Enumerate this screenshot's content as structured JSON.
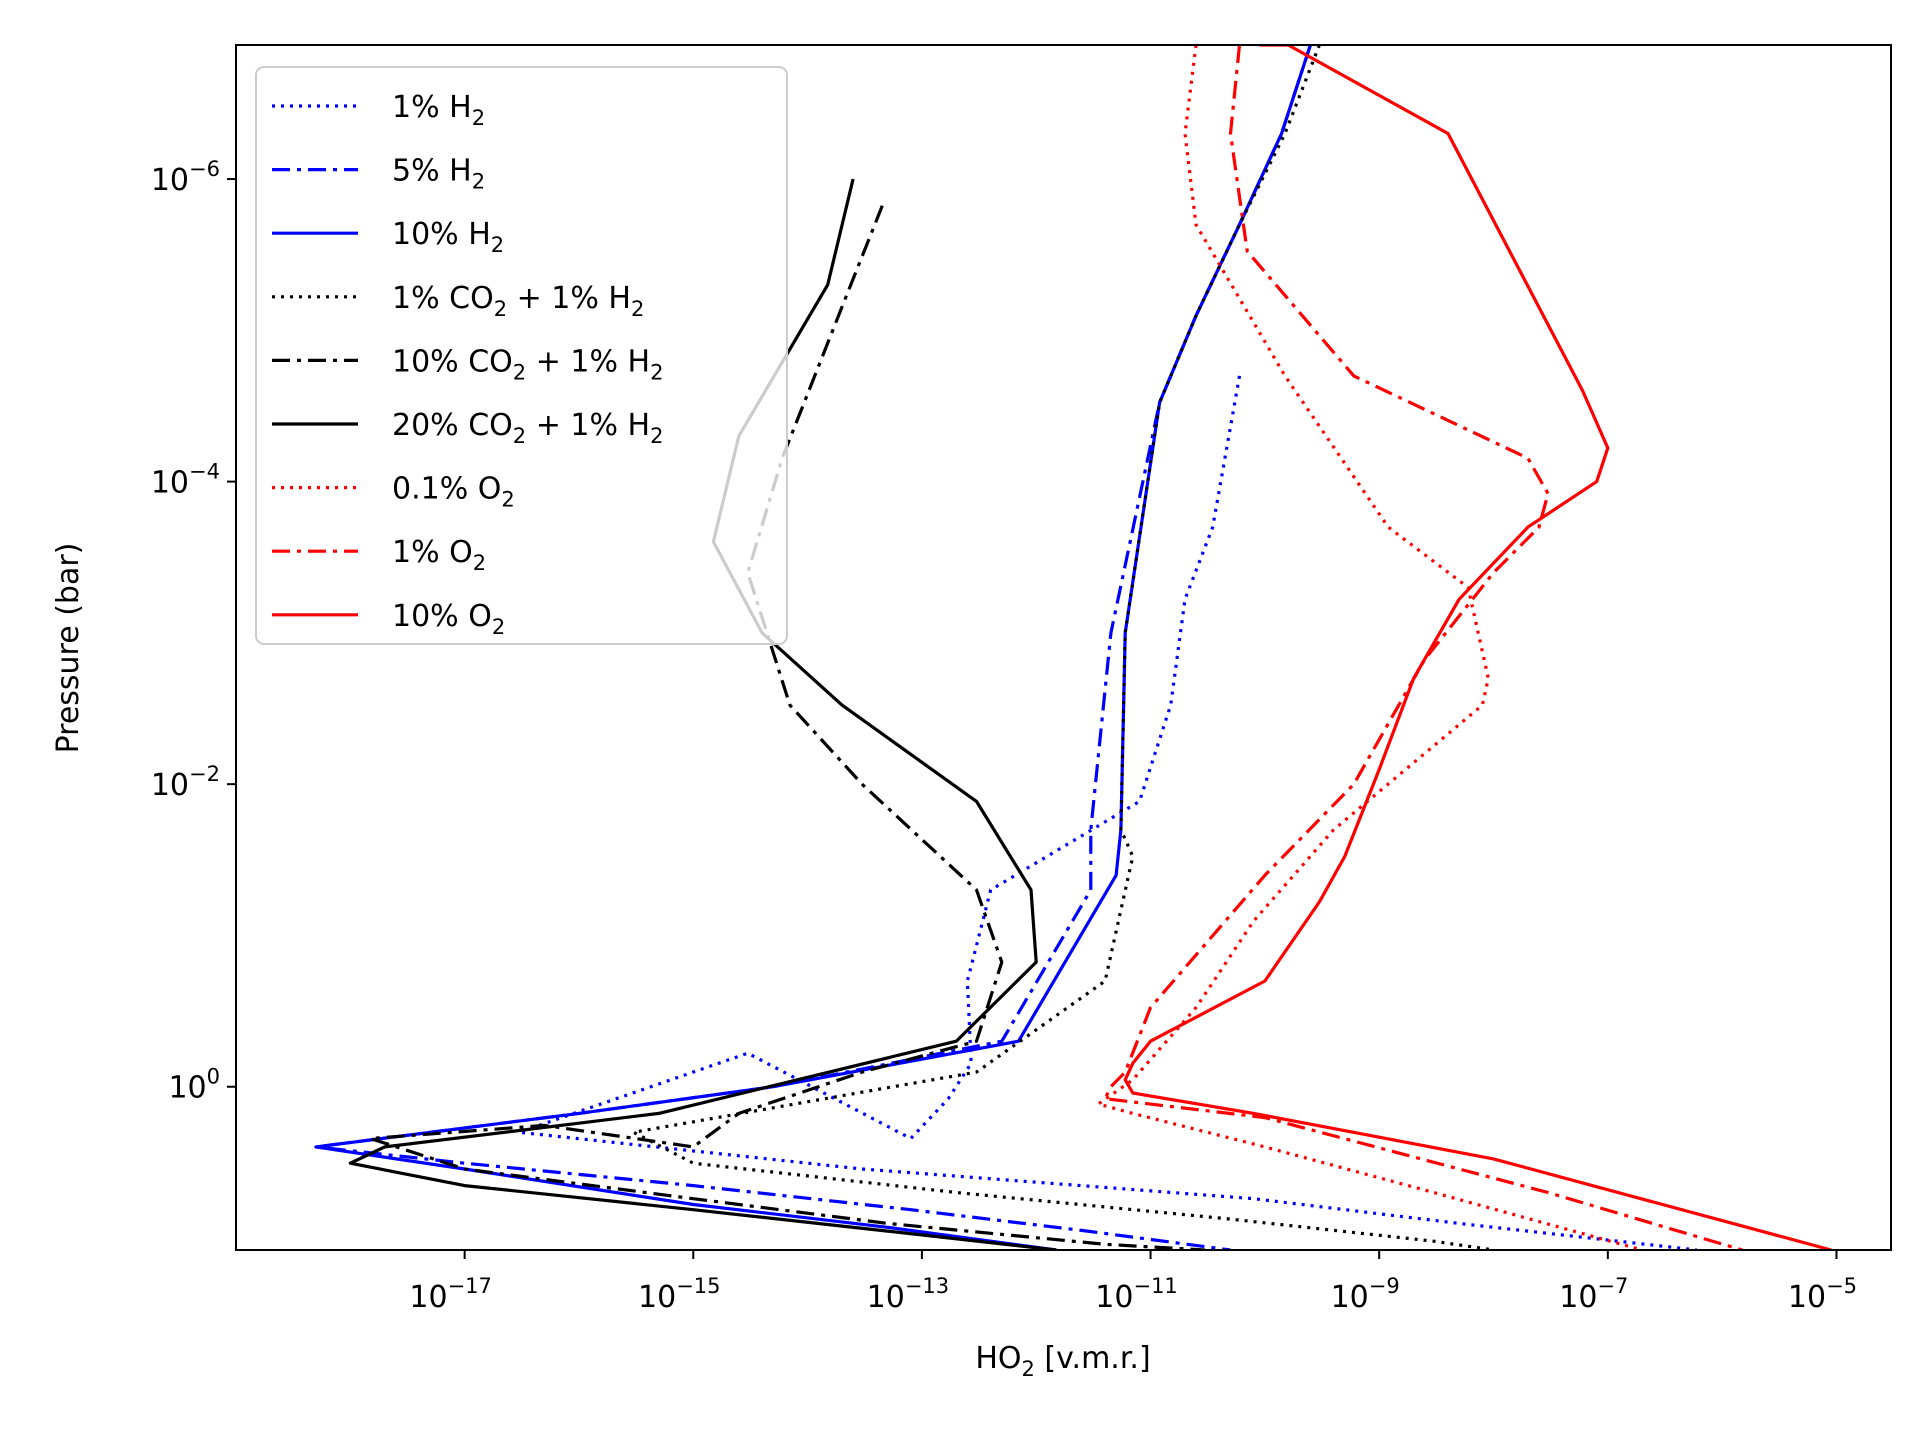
{
  "chart_data": {
    "type": "line",
    "title": "",
    "xlabel": "HO₂ [v.m.r.]",
    "xlabel_parts": [
      "HO",
      "2",
      " [v.m.r.]"
    ],
    "ylabel": "Pressure (bar)",
    "xscale": "log",
    "yscale": "log",
    "xlim": [
      1e-19,
      3e-05
    ],
    "ylim": [
      12.0,
      1.3e-07
    ],
    "y_inverted": true,
    "grid": false,
    "legend_position": "top-left",
    "x_ticks": [
      {
        "value": 1e-17,
        "label": "10",
        "exp": "−17"
      },
      {
        "value": 1e-15,
        "label": "10",
        "exp": "−15"
      },
      {
        "value": 1e-13,
        "label": "10",
        "exp": "−13"
      },
      {
        "value": 1e-11,
        "label": "10",
        "exp": "−11"
      },
      {
        "value": 1e-09,
        "label": "10",
        "exp": "−9"
      },
      {
        "value": 1e-07,
        "label": "10",
        "exp": "−7"
      },
      {
        "value": 1e-05,
        "label": "10",
        "exp": "−5"
      }
    ],
    "y_ticks": [
      {
        "value": 1e-06,
        "label": "10",
        "exp": "−6"
      },
      {
        "value": 0.0001,
        "label": "10",
        "exp": "−4"
      },
      {
        "value": 0.01,
        "label": "10",
        "exp": "−2"
      },
      {
        "value": 1,
        "label": "10",
        "exp": "0"
      }
    ],
    "series": [
      {
        "name": "1% H₂",
        "label_parts": [
          "1% H",
          "2",
          ""
        ],
        "color": "#0000ff",
        "dash": "dotted",
        "x": [
          6e-11,
          3.5e-11,
          2e-11,
          1.5e-11,
          8e-12,
          4e-13,
          2.5e-13,
          2.7e-13,
          1.7e-13,
          8e-14,
          3e-15,
          3e-17,
          3e-14,
          8e-11,
          5e-09,
          6e-07
        ],
        "y": [
          2e-05,
          0.0002,
          0.0006,
          0.003,
          0.013,
          0.05,
          0.2,
          0.7,
          1.2,
          2.2,
          0.6,
          2.0,
          3.5,
          5.5,
          8.0,
          12.0
        ]
      },
      {
        "name": "5% H₂",
        "label_parts": [
          "5% H",
          "2",
          ""
        ],
        "color": "#0000ff",
        "dash": "dashdot",
        "x": [
          2.5e-10,
          1.4e-10,
          6e-11,
          2.5e-11,
          1.2e-11,
          4.5e-12,
          3e-12,
          3e-12,
          5e-13,
          5e-15,
          1e-16,
          5e-19,
          1e-17,
          1e-15,
          8e-14,
          2.8e-12,
          5e-11
        ],
        "y": [
          1.3e-07,
          5e-07,
          2e-06,
          8e-06,
          3e-05,
          0.001,
          0.02,
          0.05,
          0.5,
          1.0,
          1.5,
          2.5,
          3.2,
          4.5,
          6.5,
          9.0,
          12.0
        ]
      },
      {
        "name": "10% H₂",
        "label_parts": [
          "10% H",
          "2",
          ""
        ],
        "color": "#0000ff",
        "dash": "solid",
        "x": [
          2.5e-10,
          1.4e-10,
          6e-11,
          2.5e-11,
          1.2e-11,
          6e-12,
          5.5e-12,
          5e-12,
          7e-13,
          5e-15,
          1e-16,
          5e-19,
          1e-17,
          1e-15,
          5e-14,
          1.5e-12
        ],
        "y": [
          1.3e-07,
          5e-07,
          2e-06,
          8e-06,
          3e-05,
          0.001,
          0.02,
          0.04,
          0.5,
          1.0,
          1.5,
          2.5,
          3.5,
          6.0,
          8.5,
          12.0
        ]
      },
      {
        "name": "1% CO₂ + 1% H₂",
        "label_parts": [
          "1% CO",
          "2",
          " + 1% H"
        ],
        "label_sub2": "2",
        "color": "#000000",
        "dash": "dotted",
        "x": [
          3e-10,
          1.5e-10,
          6e-11,
          2.5e-11,
          1.2e-11,
          6e-12,
          5.5e-12,
          7e-12,
          4e-12,
          3e-13,
          3e-16,
          1e-15,
          2e-13,
          5e-11,
          3e-09,
          1e-08
        ],
        "y": [
          1.3e-07,
          5e-07,
          2e-06,
          8e-06,
          3e-05,
          0.001,
          0.02,
          0.03,
          0.2,
          0.8,
          2.0,
          3.2,
          5.0,
          7.5,
          10.5,
          12.0
        ]
      },
      {
        "name": "10% CO₂ + 1% H₂",
        "label_parts": [
          "10% CO",
          "2",
          " + 1% H"
        ],
        "label_sub2": "2",
        "color": "#000000",
        "dash": "dashdot",
        "x": [
          4.5e-14,
          2e-14,
          6e-15,
          3e-15,
          7e-15,
          3e-14,
          3e-13,
          5e-13,
          3e-13,
          3e-14,
          2.5e-15,
          1e-15,
          5e-17,
          1.5e-18,
          1e-17,
          1e-15,
          5e-14,
          4e-12,
          3e-11
        ],
        "y": [
          1.5e-06,
          7e-06,
          7e-05,
          0.0004,
          0.003,
          0.01,
          0.05,
          0.15,
          0.5,
          0.8,
          1.5,
          2.5,
          1.8,
          2.2,
          3.5,
          5.5,
          8.0,
          11.0,
          12.0
        ]
      },
      {
        "name": "20% CO₂ + 1% H₂",
        "label_parts": [
          "20% CO",
          "2",
          " + 1% H"
        ],
        "label_sub2": "2",
        "color": "#000000",
        "dash": "solid",
        "x": [
          2.5e-14,
          1.5e-14,
          2.5e-15,
          1.5e-15,
          4e-15,
          2e-14,
          3e-13,
          9e-13,
          1e-12,
          2e-13,
          5e-16,
          2e-18,
          1e-18,
          1e-17,
          1e-15,
          5e-14,
          1.5e-12
        ],
        "y": [
          1e-06,
          5e-06,
          5e-05,
          0.00025,
          0.001,
          0.003,
          0.013,
          0.05,
          0.15,
          0.5,
          1.5,
          2.5,
          3.2,
          4.5,
          6.5,
          9.0,
          12.0
        ]
      },
      {
        "name": "0.1% O₂",
        "label_parts": [
          "0.1% O",
          "2",
          ""
        ],
        "color": "#ff0000",
        "dash": "dotted",
        "x": [
          2.5e-11,
          2e-11,
          2.5e-11,
          1.5e-10,
          1.2e-09,
          6e-09,
          9e-09,
          8e-09,
          4e-10,
          8e-11,
          2.5e-11,
          7e-12,
          3.5e-12,
          7e-12,
          1e-10,
          3e-09,
          2e-07
        ],
        "y": [
          1.3e-07,
          5e-07,
          2e-06,
          2e-05,
          0.0002,
          0.0005,
          0.002,
          0.003,
          0.02,
          0.08,
          0.3,
          0.9,
          1.3,
          1.5,
          2.5,
          5.0,
          12.0
        ]
      },
      {
        "name": "1% O₂",
        "label_parts": [
          "1% O",
          "2",
          ""
        ],
        "color": "#ff0000",
        "dash": "dashdot",
        "x": [
          6e-11,
          5e-11,
          7e-11,
          6e-10,
          2e-08,
          3e-08,
          2.5e-08,
          1e-08,
          2.5e-09,
          6e-10,
          1e-10,
          1e-11,
          6e-12,
          4.5e-12,
          4e-12,
          1e-10,
          3e-08,
          1.5e-06
        ],
        "y": [
          1.3e-07,
          5e-07,
          3e-06,
          2e-05,
          7e-05,
          0.00012,
          0.0002,
          0.0004,
          0.0015,
          0.01,
          0.04,
          0.3,
          0.8,
          1.0,
          1.2,
          1.6,
          5.0,
          12.0
        ]
      },
      {
        "name": "10% O₂",
        "label_parts": [
          "10% O",
          "2",
          ""
        ],
        "color": "#ff0000",
        "dash": "solid",
        "x": [
          9e-11,
          1.6e-10,
          4e-09,
          6e-08,
          1e-07,
          8e-08,
          2e-08,
          5e-09,
          2e-09,
          1e-09,
          5e-10,
          3e-10,
          1e-10,
          1e-11,
          7e-12,
          6e-12,
          7e-12,
          8e-11,
          1e-08,
          9e-06
        ],
        "y": [
          1.3e-07,
          1.3e-07,
          5e-07,
          2.5e-05,
          6e-05,
          0.0001,
          0.0002,
          0.0006,
          0.002,
          0.008,
          0.03,
          0.06,
          0.2,
          0.5,
          0.7,
          0.9,
          1.1,
          1.5,
          3.0,
          12.0
        ]
      }
    ]
  }
}
